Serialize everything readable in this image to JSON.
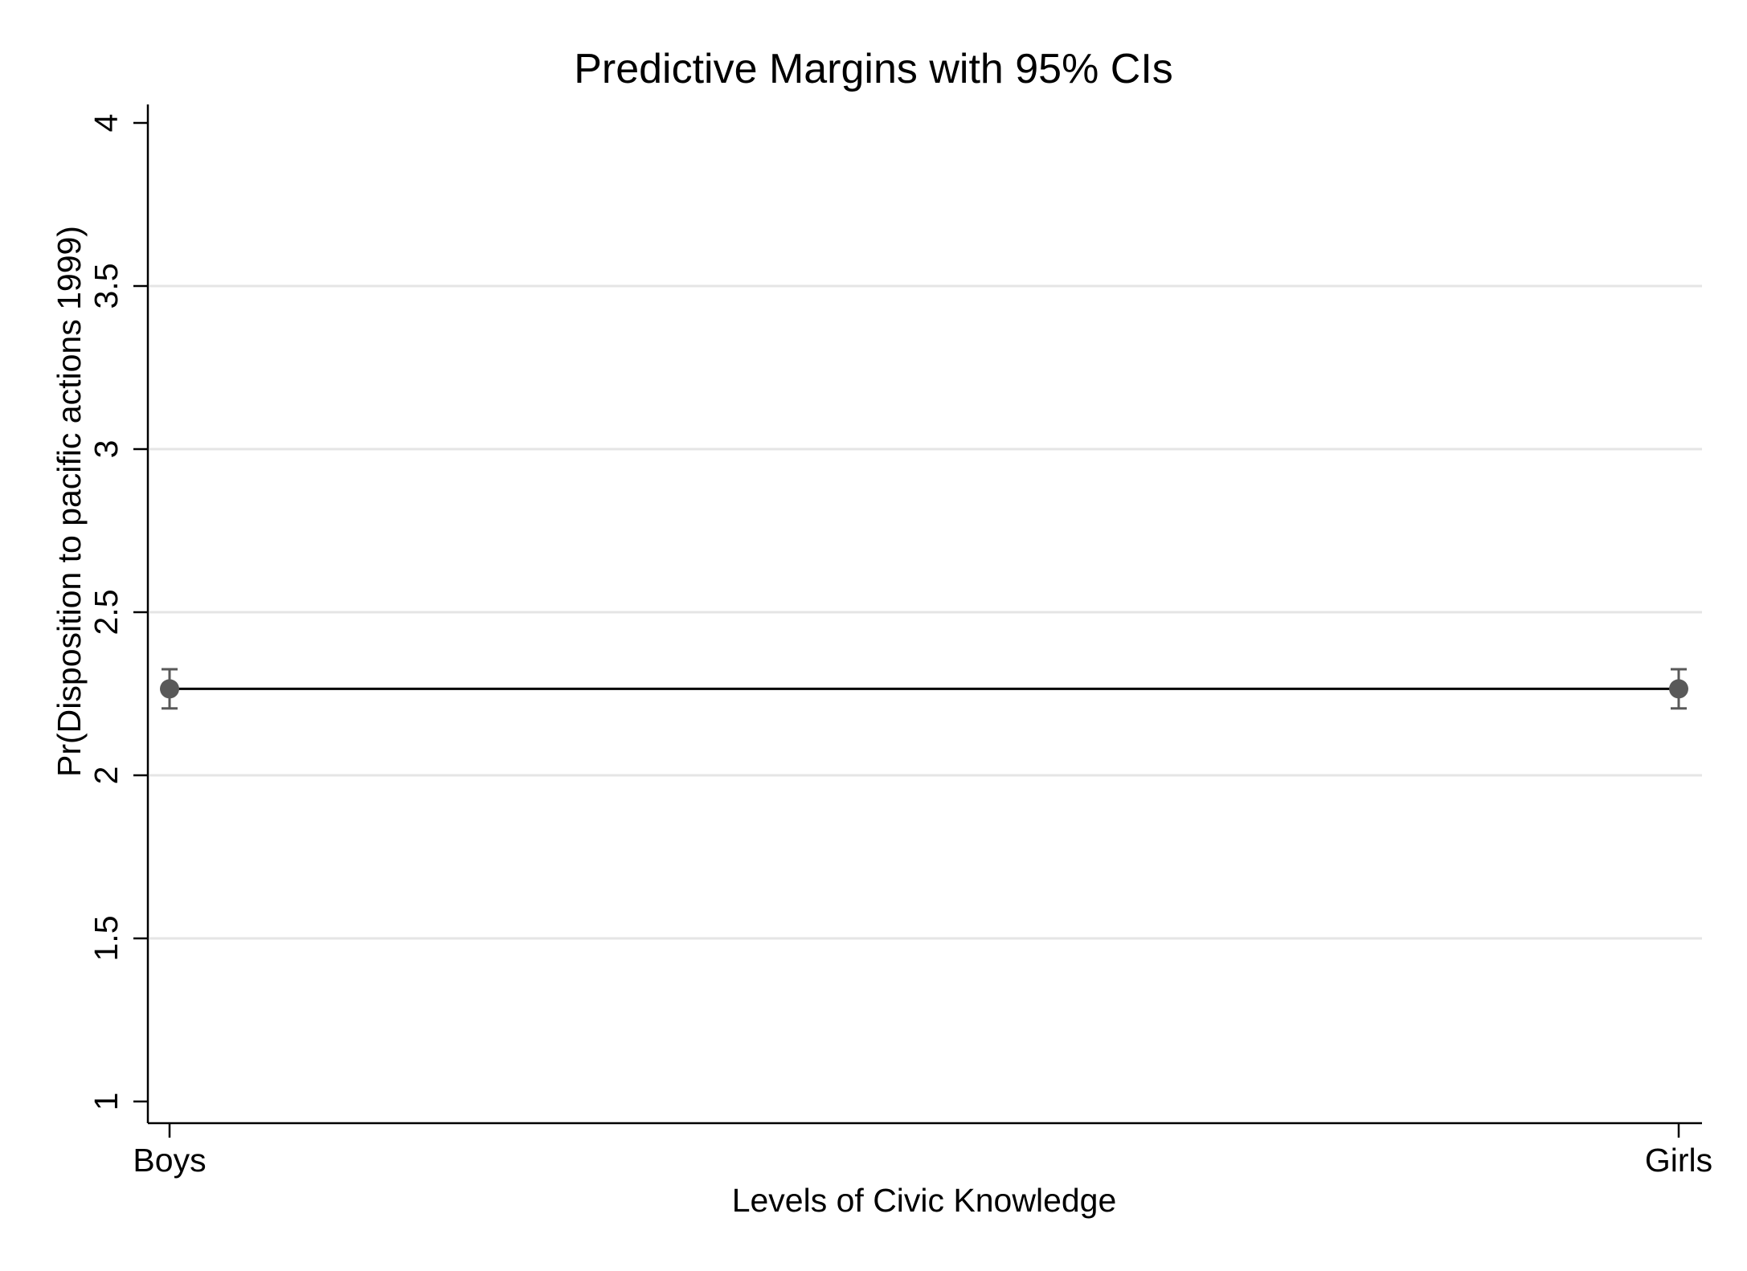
{
  "chart_data": {
    "type": "line",
    "title": "Predictive Margins with 95% CIs",
    "xlabel": "Levels of Civic Knowledge",
    "ylabel": "Pr(Disposition to pacific actions 1999)",
    "categories": [
      "Boys",
      "Girls"
    ],
    "series": [
      {
        "values": [
          2.265,
          2.265
        ],
        "ci_low": [
          2.205,
          2.205
        ],
        "ci_high": [
          2.325,
          2.325
        ]
      }
    ],
    "ylim": [
      1,
      4
    ],
    "yticks": [
      1,
      1.5,
      2,
      2.5,
      3,
      3.5,
      4
    ],
    "ytick_labels": [
      "1",
      "1.5",
      "2",
      "2.5",
      "3",
      "3.5",
      "4"
    ],
    "grid": "horizontal",
    "colors": {
      "line": "#000000",
      "marker": "#595959",
      "grid": "#e5e5e5",
      "axis": "#000000"
    }
  }
}
